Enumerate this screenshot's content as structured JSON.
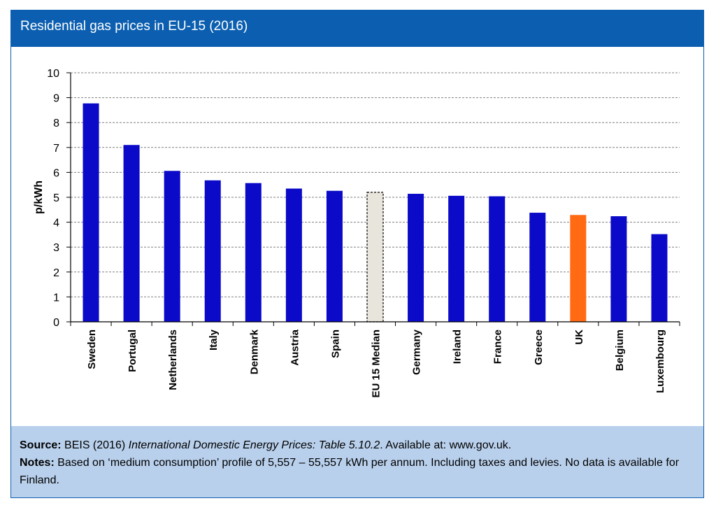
{
  "header": {
    "title": "Residential gas prices in EU-15 (2016)"
  },
  "colors": {
    "header_bg": "#0c5fb0",
    "bar": "#0a0ac8",
    "uk_bar": "#ff6a13",
    "median_bar": "#e8e6dc",
    "footer_bg": "#b9d0ec"
  },
  "chart_data": {
    "type": "bar",
    "title": "Residential gas prices in EU-15 (2016)",
    "ylabel": "p/kWh",
    "xlabel": "",
    "ylim": [
      0,
      10
    ],
    "yticks": [
      "0",
      "1",
      "2",
      "3",
      "4",
      "5",
      "6",
      "7",
      "8",
      "9",
      "10"
    ],
    "grid": true,
    "categories": [
      "Sweden",
      "Portugal",
      "Netherlands",
      "Italy",
      "Denmark",
      "Austria",
      "Spain",
      "EU 15 Median",
      "Germany",
      "Ireland",
      "France",
      "Greece",
      "UK",
      "Belgium",
      "Luxembourg"
    ],
    "values": [
      8.77,
      7.1,
      6.06,
      5.68,
      5.57,
      5.35,
      5.26,
      5.2,
      5.14,
      5.06,
      5.04,
      4.38,
      4.29,
      4.24,
      3.52
    ],
    "highlight": {
      "UK": "orange",
      "EU 15 Median": "dashed-outline"
    }
  },
  "footer": {
    "source_label": "Source:",
    "source_text_1": " BEIS (2016) ",
    "source_italic": "International Domestic Energy Prices: Table 5.10.2",
    "source_text_2": ". Available at: www.gov.uk.",
    "notes_label": "Notes:",
    "notes_text": " Based on ‘medium consumption’ profile of 5,557 – 55,557 kWh per annum. Including taxes and levies. No data is available for Finland."
  }
}
